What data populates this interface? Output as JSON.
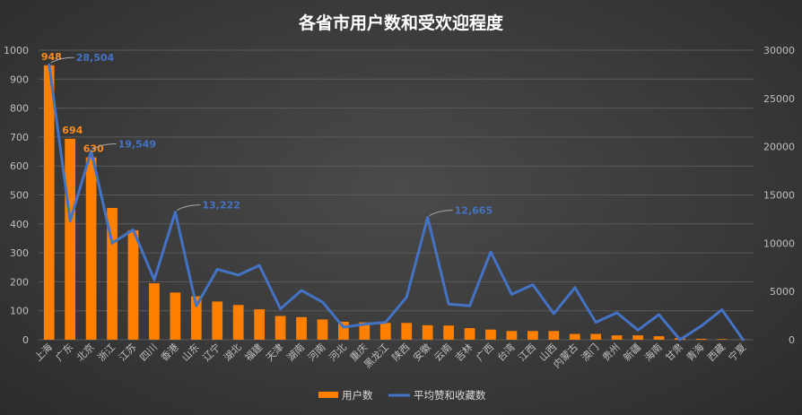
{
  "chart_data": {
    "type": "bar",
    "title": "各省市用户数和受欢迎程度",
    "categories": [
      "上海",
      "广东",
      "北京",
      "浙江",
      "江苏",
      "四川",
      "香港",
      "山东",
      "辽宁",
      "湖北",
      "福建",
      "天津",
      "湖南",
      "河南",
      "河北",
      "重庆",
      "黑龙江",
      "陕西",
      "安徽",
      "云南",
      "吉林",
      "广西",
      "台湾",
      "江西",
      "山西",
      "内蒙古",
      "澳门",
      "贵州",
      "新疆",
      "海南",
      "甘肃",
      "青海",
      "西藏",
      "宁夏"
    ],
    "series": [
      {
        "name": "用户数",
        "type": "bar",
        "axis": "left",
        "color": "#ff8000",
        "values": [
          948,
          694,
          630,
          455,
          378,
          195,
          163,
          150,
          132,
          120,
          105,
          82,
          78,
          70,
          62,
          60,
          58,
          58,
          50,
          49,
          40,
          35,
          30,
          30,
          30,
          20,
          20,
          15,
          15,
          12,
          5,
          3,
          2,
          1
        ]
      },
      {
        "name": "平均赞和收藏数",
        "type": "line",
        "axis": "right",
        "color": "#4472c4",
        "values": [
          28504,
          12300,
          19549,
          10000,
          11400,
          6200,
          13222,
          3500,
          7300,
          6700,
          7700,
          3200,
          5100,
          3900,
          1300,
          1600,
          1800,
          4400,
          12665,
          3700,
          3500,
          9100,
          4700,
          5700,
          2700,
          5400,
          1800,
          2800,
          1000,
          2600,
          0,
          1400,
          3100,
          0
        ]
      }
    ],
    "bar_labels": [
      {
        "index": 0,
        "text": "948"
      },
      {
        "index": 1,
        "text": "694"
      },
      {
        "index": 2,
        "text": "630"
      }
    ],
    "line_labels": [
      {
        "index": 0,
        "text": "28,504"
      },
      {
        "index": 2,
        "text": "19,549"
      },
      {
        "index": 6,
        "text": "13,222"
      },
      {
        "index": 18,
        "text": "12,665"
      }
    ],
    "y_left": {
      "min": 0,
      "max": 1000,
      "step": 100,
      "ticks": [
        "0",
        "100",
        "200",
        "300",
        "400",
        "500",
        "600",
        "700",
        "800",
        "900",
        "1000"
      ]
    },
    "y_right": {
      "min": 0,
      "max": 30000,
      "step": 5000,
      "ticks": [
        "0",
        "5000",
        "10000",
        "15000",
        "20000",
        "25000",
        "30000"
      ]
    },
    "grid": true,
    "legend": "bottom"
  }
}
